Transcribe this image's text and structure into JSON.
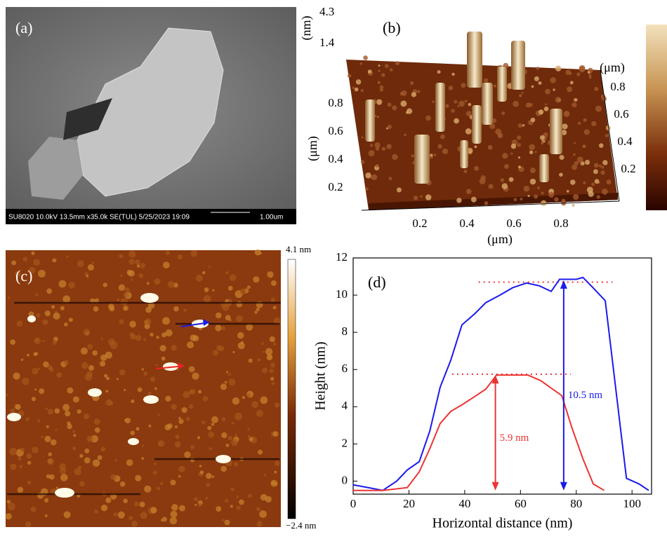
{
  "panels": {
    "a": {
      "label": "(a)",
      "info": "SU8020 10.0kV 13.5mm x35.0k SE(TUL) 5/25/2023 19:09",
      "scale": "1.00um"
    },
    "b": {
      "label": "(b)",
      "z_unit": "(nm)",
      "z_ticks": [
        4.3,
        1.4
      ],
      "x_ticks": [
        0.2,
        0.4,
        0.6,
        0.8
      ],
      "x_unit": "(μm)",
      "y_ticks": [
        0.2,
        0.4,
        0.6,
        0.8
      ],
      "y_unit": "(μm)",
      "depth_ticks": [
        0.8,
        0.6,
        0.4,
        0.2
      ],
      "depth_unit": "(μm)"
    },
    "c": {
      "label": "(c)",
      "colorbar_max": "4.1 nm",
      "colorbar_min": "−2.4 nm"
    }
  },
  "chart_data": {
    "type": "line",
    "panel_label": "(d)",
    "x_label": "Horizontal distance (nm)",
    "y_label": "Height (nm)",
    "xlim": [
      0,
      107
    ],
    "xticks": [
      0,
      20,
      40,
      60,
      80,
      100
    ],
    "ylim": [
      -0.7,
      12
    ],
    "yticks": [
      0,
      2,
      4,
      6,
      8,
      10,
      12
    ],
    "series": [
      {
        "color": "#1a1aee",
        "x": [
          0,
          5.5,
          10.6,
          15.6,
          19.4,
          23.7,
          27.5,
          31.2,
          35,
          39,
          43.6,
          47.6,
          52.6,
          57.2,
          62.2,
          66.8,
          71,
          74,
          77.3,
          80,
          82.4,
          86,
          90.4,
          98,
          102.5,
          106
        ],
        "values": [
          -0.2,
          -0.35,
          -0.5,
          0,
          0.6,
          1.05,
          2.7,
          5.05,
          6.5,
          8.4,
          9.0,
          9.6,
          10.0,
          10.4,
          10.65,
          10.5,
          10.2,
          10.85,
          10.85,
          10.85,
          10.95,
          10.4,
          9.7,
          0.15,
          -0.15,
          -0.5
        ]
      },
      {
        "color": "#ee3333",
        "x": [
          0,
          10.6,
          19.4,
          23.7,
          27.5,
          31.2,
          35,
          39,
          43.6,
          47.6,
          51.4,
          62.7,
          67.3,
          71,
          74.8,
          78.6,
          82.4,
          86.1,
          90
        ],
        "values": [
          -0.5,
          -0.5,
          -0.35,
          0.5,
          1.75,
          3.1,
          3.75,
          4.1,
          4.55,
          4.95,
          5.7,
          5.7,
          5.4,
          5.0,
          4.6,
          2.8,
          1.2,
          -0.15,
          -0.5
        ]
      }
    ],
    "reference_lines": [
      {
        "y": 10.7,
        "x": [
          45,
          93
        ],
        "color": "#ee3333"
      },
      {
        "y": 5.75,
        "x": [
          35.5,
          78
        ],
        "color": "#ee3333"
      }
    ],
    "annotations": [
      {
        "text": "5.9 nm",
        "x": 51,
        "y_from": -0.5,
        "y_to": 5.7,
        "color": "#ee3333"
      },
      {
        "text": "10.5 nm",
        "x": 75.5,
        "y_from": -0.5,
        "y_to": 10.8,
        "color": "#1a1aee"
      }
    ]
  }
}
